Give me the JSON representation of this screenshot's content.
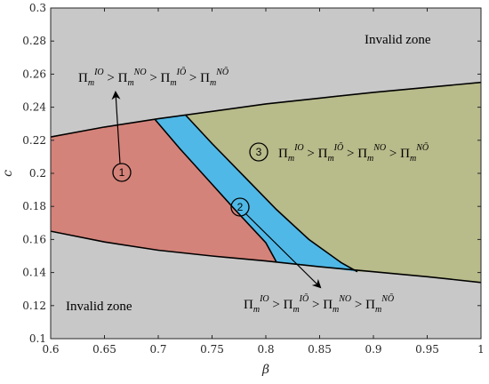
{
  "chart_data": {
    "type": "area",
    "xlabel": "β",
    "ylabel": "c",
    "xlim": [
      0.6,
      1.0
    ],
    "ylim": [
      0.1,
      0.3
    ],
    "xticks": [
      "0.6",
      "0.65",
      "0.7",
      "0.75",
      "0.8",
      "0.85",
      "0.9",
      "0.95",
      "1"
    ],
    "yticks": [
      "0.1",
      "0.12",
      "0.14",
      "0.16",
      "0.18",
      "0.2",
      "0.22",
      "0.24",
      "0.26",
      "0.28",
      "0.3"
    ],
    "grid": false,
    "colors": {
      "background": "#c8c8c8",
      "region1": "#d4837a",
      "region2": "#4fb8e6",
      "region3": "#b8bb8a",
      "line": "#000000"
    },
    "boundaries": {
      "upper": [
        [
          0.6,
          0.222
        ],
        [
          0.65,
          0.228
        ],
        [
          0.7,
          0.233
        ],
        [
          0.75,
          0.2375
        ],
        [
          0.8,
          0.242
        ],
        [
          0.85,
          0.2455
        ],
        [
          0.9,
          0.249
        ],
        [
          0.95,
          0.252
        ],
        [
          1.0,
          0.255
        ]
      ],
      "lower": [
        [
          0.6,
          0.165
        ],
        [
          0.65,
          0.1585
        ],
        [
          0.7,
          0.1535
        ],
        [
          0.75,
          0.15
        ],
        [
          0.8,
          0.147
        ],
        [
          0.85,
          0.1435
        ],
        [
          0.9,
          0.1405
        ],
        [
          0.95,
          0.1375
        ],
        [
          1.0,
          0.134
        ]
      ],
      "split12": [
        [
          0.697,
          0.2325
        ],
        [
          0.72,
          0.215
        ],
        [
          0.745,
          0.197
        ],
        [
          0.77,
          0.179
        ],
        [
          0.8,
          0.158
        ],
        [
          0.81,
          0.1462
        ]
      ],
      "split23": [
        [
          0.725,
          0.2355
        ],
        [
          0.75,
          0.218
        ],
        [
          0.78,
          0.198
        ],
        [
          0.81,
          0.178
        ],
        [
          0.84,
          0.16
        ],
        [
          0.87,
          0.146
        ],
        [
          0.885,
          0.1405
        ]
      ]
    },
    "zones": [
      "Invalid zone",
      "Invalid zone"
    ],
    "regions": [
      {
        "id": "1",
        "label": "Π_m^IO > Π_m^NO > Π_m^IŌ > Π_m^NŌ"
      },
      {
        "id": "2",
        "label": "Π_m^IO > Π_m^IŌ > Π_m^NO > Π_m^NŌ"
      },
      {
        "id": "3",
        "label": "Π_m^IO > Π_m^IŌ > Π_m^NO > Π_m^NŌ"
      }
    ]
  }
}
